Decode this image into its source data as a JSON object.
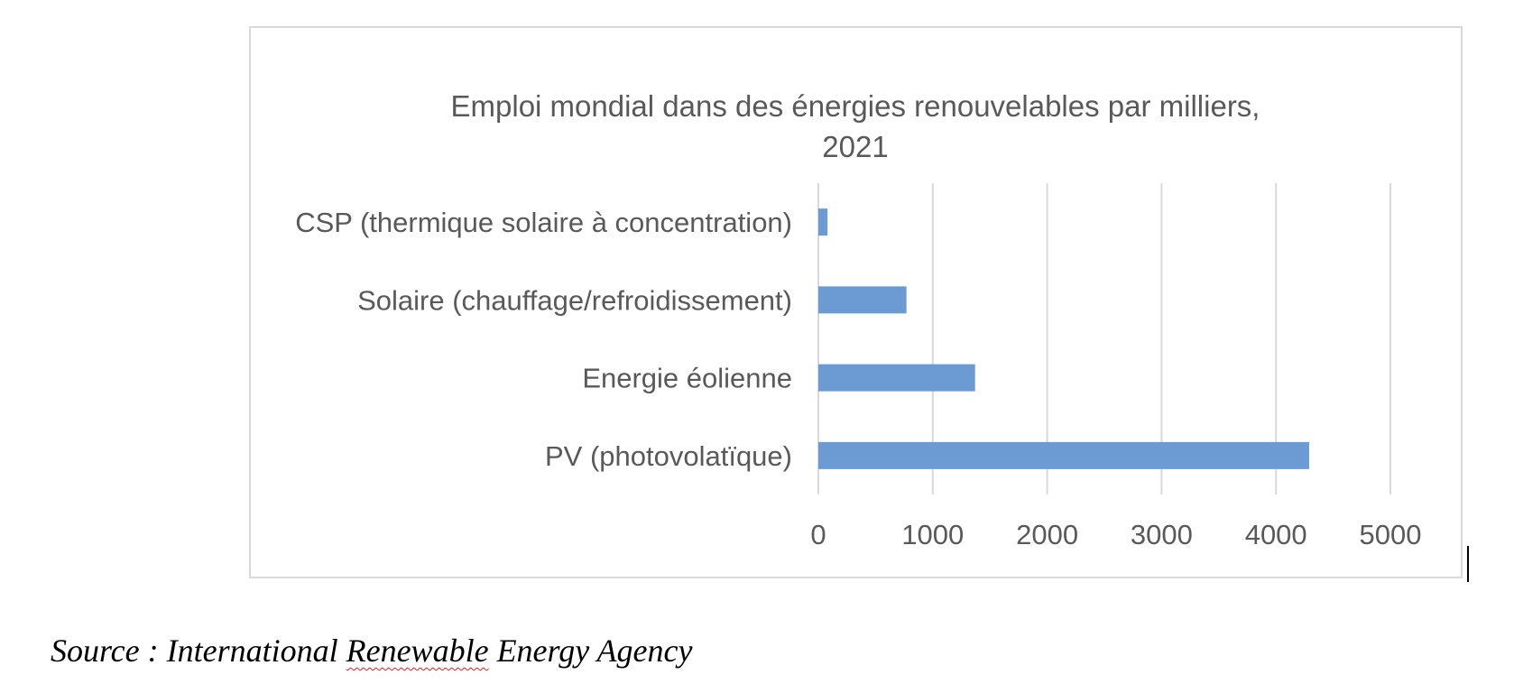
{
  "chart_data": {
    "type": "bar",
    "orientation": "horizontal",
    "title": "Emploi mondial dans des énergies renouvelables par milliers,",
    "title_line2": "2021",
    "categories": [
      "CSP (thermique solaire à concentration)",
      "Solaire (chauffage/refroidissement)",
      "Energie éolienne",
      "PV (photovolatïque)"
    ],
    "values": [
      80,
      770,
      1370,
      4290
    ],
    "xlim": [
      0,
      5000
    ],
    "xticks": [
      "0",
      "1000",
      "2000",
      "3000",
      "4000",
      "5000"
    ],
    "grid": "vertical",
    "legend": "none",
    "colors": {
      "bar": "#6b9bd2",
      "grid": "#d9d9d9",
      "text": "#595959",
      "frame": "#d9d9d9"
    }
  },
  "source": {
    "prefix": "Source : International ",
    "flagged_word": "Renewable",
    "suffix": " Energy Agency"
  }
}
